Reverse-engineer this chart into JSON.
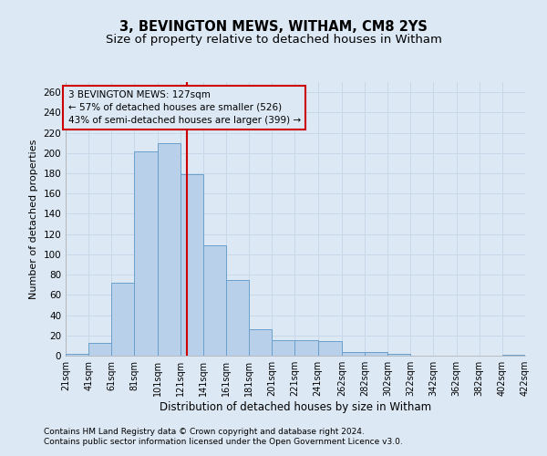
{
  "title1": "3, BEVINGTON MEWS, WITHAM, CM8 2YS",
  "title2": "Size of property relative to detached houses in Witham",
  "xlabel": "Distribution of detached houses by size in Witham",
  "ylabel": "Number of detached properties",
  "footer1": "Contains HM Land Registry data © Crown copyright and database right 2024.",
  "footer2": "Contains public sector information licensed under the Open Government Licence v3.0.",
  "annotation_line1": "3 BEVINGTON MEWS: 127sqm",
  "annotation_line2": "← 57% of detached houses are smaller (526)",
  "annotation_line3": "43% of semi-detached houses are larger (399) →",
  "property_size": 127,
  "bin_edges": [
    21,
    41,
    61,
    81,
    101,
    121,
    141,
    161,
    181,
    201,
    221,
    241,
    262,
    282,
    302,
    322,
    342,
    362,
    382,
    402,
    422
  ],
  "bar_values": [
    2,
    13,
    72,
    202,
    210,
    179,
    109,
    75,
    26,
    15,
    15,
    14,
    4,
    4,
    2,
    0,
    0,
    0,
    0,
    1
  ],
  "bar_color": "#b8d0ea",
  "bar_edge_color": "#6aa0cc",
  "vline_color": "#cc0000",
  "vline_x": 127,
  "annotation_box_color": "#cc0000",
  "ylim": [
    0,
    270
  ],
  "yticks": [
    0,
    20,
    40,
    60,
    80,
    100,
    120,
    140,
    160,
    180,
    200,
    220,
    240,
    260
  ],
  "grid_color": "#c8d8e8",
  "bg_color": "#dce8f4",
  "title1_fontsize": 10.5,
  "title2_fontsize": 9.5,
  "footer_fontsize": 6.5
}
